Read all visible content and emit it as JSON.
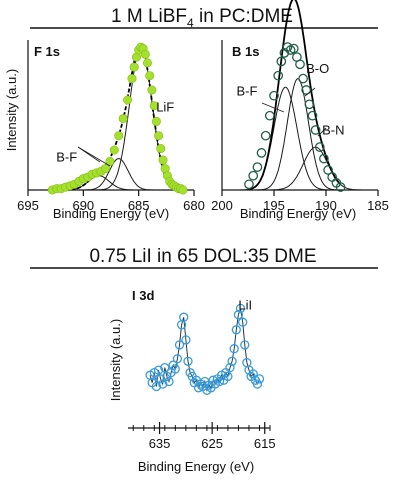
{
  "section1": {
    "title_main": "1 M LiBF",
    "title_sub": "4",
    "title_rest": " in PC:DME"
  },
  "section2": {
    "title": "0.75 LiI in 65 DOL:35 DME"
  },
  "colors": {
    "f1s_markers": "#a6e02e",
    "f1s_fit": "#1a1a1a",
    "b1s_markers": "#1f5e4a",
    "i3d_markers": "#3a9bd9",
    "axis": "#111111"
  },
  "chart_data": [
    {
      "id": "f1s",
      "type": "scatter",
      "label": "F 1s",
      "xlabel": "Binding Energy (eV)",
      "ylabel": "Intensity (a.u.)",
      "xlim": [
        695,
        680
      ],
      "ylim": [
        0,
        1.05
      ],
      "x_reversed": true,
      "xticks": [
        "695",
        "690",
        "685",
        "680"
      ],
      "xtick_values": [
        695,
        690,
        685,
        680
      ],
      "annotations": [
        {
          "text": "LiF",
          "x": 682.6,
          "y": 0.55
        },
        {
          "text": "B-F",
          "x": 691.5,
          "y": 0.2
        }
      ],
      "components": [
        {
          "name": "LiF",
          "center": 684.8,
          "amplitude": 1.0,
          "fwhm": 2.4
        },
        {
          "name": "B-F",
          "center": 686.8,
          "amplitude": 0.22,
          "fwhm": 2.0
        },
        {
          "name": "B-F",
          "center": 688.6,
          "amplitude": 0.1,
          "fwhm": 2.2
        }
      ],
      "x": [
        692.8,
        692.4,
        692.0,
        691.6,
        691.2,
        690.8,
        690.4,
        690.0,
        689.6,
        689.2,
        688.8,
        688.4,
        688.0,
        687.6,
        687.2,
        686.8,
        686.4,
        686.0,
        685.6,
        685.4,
        685.2,
        685.0,
        684.8,
        684.6,
        684.4,
        684.2,
        684.0,
        683.8,
        683.6,
        683.4,
        683.2,
        683.0,
        682.8,
        682.6,
        682.4,
        682.2,
        682.0,
        681.8,
        681.6,
        681.4,
        681.2,
        681.0
      ],
      "y": [
        0.0,
        0.01,
        0.01,
        0.02,
        0.03,
        0.04,
        0.06,
        0.08,
        0.09,
        0.11,
        0.12,
        0.13,
        0.15,
        0.2,
        0.28,
        0.38,
        0.5,
        0.63,
        0.78,
        0.86,
        0.93,
        0.98,
        1.0,
        0.99,
        0.95,
        0.89,
        0.8,
        0.7,
        0.59,
        0.48,
        0.38,
        0.29,
        0.21,
        0.15,
        0.1,
        0.06,
        0.04,
        0.03,
        0.02,
        0.01,
        0.01,
        0.0
      ]
    },
    {
      "id": "b1s",
      "type": "scatter",
      "label": "B 1s",
      "xlabel": "Binding Energy (eV)",
      "ylabel": "",
      "xlim": [
        200,
        185
      ],
      "ylim": [
        0,
        1.05
      ],
      "x_reversed": true,
      "xticks": [
        "200",
        "195",
        "190",
        "185"
      ],
      "xtick_values": [
        200,
        195,
        190,
        185
      ],
      "annotations": [
        {
          "text": "B-O",
          "x": 190.8,
          "y": 0.82
        },
        {
          "text": "B-F",
          "x": 197.6,
          "y": 0.66
        },
        {
          "text": "B-N",
          "x": 189.3,
          "y": 0.39
        }
      ],
      "components": [
        {
          "name": "B-F",
          "center": 193.9,
          "amplitude": 0.72,
          "fwhm": 2.6
        },
        {
          "name": "B-O",
          "center": 192.7,
          "amplitude": 0.78,
          "fwhm": 2.4
        },
        {
          "name": "B-N",
          "center": 191.0,
          "amplitude": 0.3,
          "fwhm": 2.8
        }
      ],
      "x": [
        197.4,
        197.0,
        196.6,
        196.2,
        195.8,
        195.4,
        195.0,
        194.6,
        194.3,
        194.0,
        193.7,
        193.4,
        193.1,
        192.8,
        192.5,
        192.2,
        191.9,
        191.6,
        191.3,
        191.0,
        190.6,
        190.2,
        189.8,
        189.4,
        189.0,
        188.6
      ],
      "y": [
        0.04,
        0.1,
        0.16,
        0.26,
        0.38,
        0.52,
        0.66,
        0.8,
        0.9,
        0.96,
        1.0,
        0.98,
        0.99,
        0.93,
        0.88,
        0.78,
        0.7,
        0.6,
        0.52,
        0.42,
        0.3,
        0.22,
        0.14,
        0.09,
        0.05,
        0.02
      ]
    },
    {
      "id": "i3d",
      "type": "scatter",
      "label": "I 3d",
      "xlabel": "Binding Energy (eV)",
      "ylabel": "Intensity (a.u.)",
      "xlim": [
        641,
        614
      ],
      "ylim": [
        0,
        1.0
      ],
      "x_reversed": true,
      "xticks": [
        "635",
        "625",
        "615"
      ],
      "xtick_values": [
        635,
        625,
        615
      ],
      "minor_tick_step": 2,
      "annotations": [
        {
          "text": "LiI",
          "x": 618.7,
          "y": 0.86
        }
      ],
      "peaks": [
        {
          "center": 630.6,
          "amplitude": 0.48,
          "fwhm": 1.6
        },
        {
          "center": 619.1,
          "amplitude": 0.58,
          "fwhm": 1.5
        }
      ],
      "baseline": 0.3,
      "x": [
        636.8,
        636.4,
        636.0,
        635.6,
        635.2,
        634.8,
        634.4,
        634.0,
        633.6,
        633.2,
        632.8,
        632.4,
        632.0,
        631.6,
        631.2,
        630.8,
        630.4,
        630.0,
        629.6,
        629.2,
        628.8,
        628.4,
        628.0,
        627.6,
        627.2,
        626.8,
        626.4,
        626.0,
        625.6,
        625.2,
        624.8,
        624.4,
        624.0,
        623.6,
        623.2,
        622.8,
        622.4,
        622.0,
        621.6,
        621.2,
        620.8,
        620.4,
        620.0,
        619.6,
        619.2,
        618.8,
        618.4,
        618.0,
        617.6,
        617.2,
        616.8,
        616.4,
        616.0
      ],
      "y": [
        0.34,
        0.28,
        0.36,
        0.25,
        0.38,
        0.31,
        0.27,
        0.4,
        0.33,
        0.29,
        0.36,
        0.42,
        0.39,
        0.47,
        0.58,
        0.74,
        0.8,
        0.62,
        0.45,
        0.36,
        0.33,
        0.28,
        0.3,
        0.24,
        0.27,
        0.25,
        0.29,
        0.22,
        0.26,
        0.24,
        0.3,
        0.27,
        0.31,
        0.29,
        0.34,
        0.3,
        0.36,
        0.33,
        0.4,
        0.45,
        0.55,
        0.7,
        0.82,
        0.87,
        0.76,
        0.58,
        0.44,
        0.38,
        0.33,
        0.35,
        0.3,
        0.27,
        0.31
      ]
    }
  ]
}
